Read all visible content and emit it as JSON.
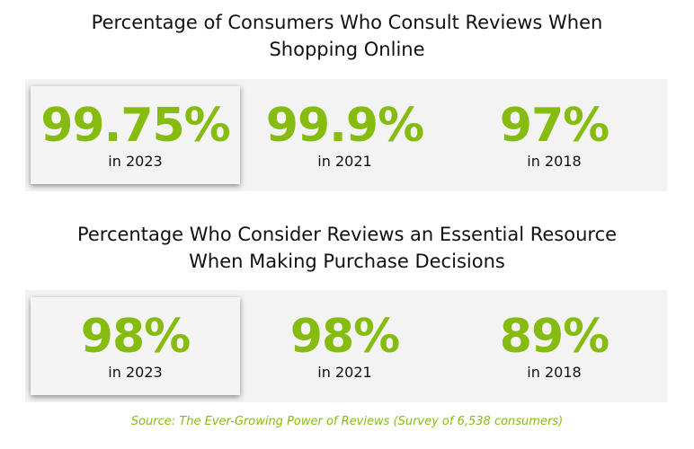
{
  "sections": [
    {
      "title": "Percentage of Consumers Who Consult Reviews When Shopping Online",
      "title_lines": [
        "Percentage of Consumers Who Consult Reviews When",
        "Shopping Online"
      ],
      "stats": [
        {
          "value": "99.75%",
          "label": "in 2023"
        },
        {
          "value": "99.9%",
          "label": "in 2021"
        },
        {
          "value": "97%",
          "label": "in 2018"
        }
      ]
    },
    {
      "title": "Percentage Who Consider Reviews an Essential Resource When Making Purchase Decisions",
      "title_lines": [
        "Percentage Who Consider Reviews an Essential Resource",
        "When Making Purchase Decisions"
      ],
      "stats": [
        {
          "value": "98%",
          "label": "in 2023"
        },
        {
          "value": "98%",
          "label": "in 2021"
        },
        {
          "value": "89%",
          "label": "in 2018"
        }
      ]
    }
  ],
  "source": "Source: The Ever-Growing Power of Reviews (Survey of 6,538 consumers)",
  "colors": {
    "accent": "#86bc10",
    "band": "#f3f3f3"
  }
}
